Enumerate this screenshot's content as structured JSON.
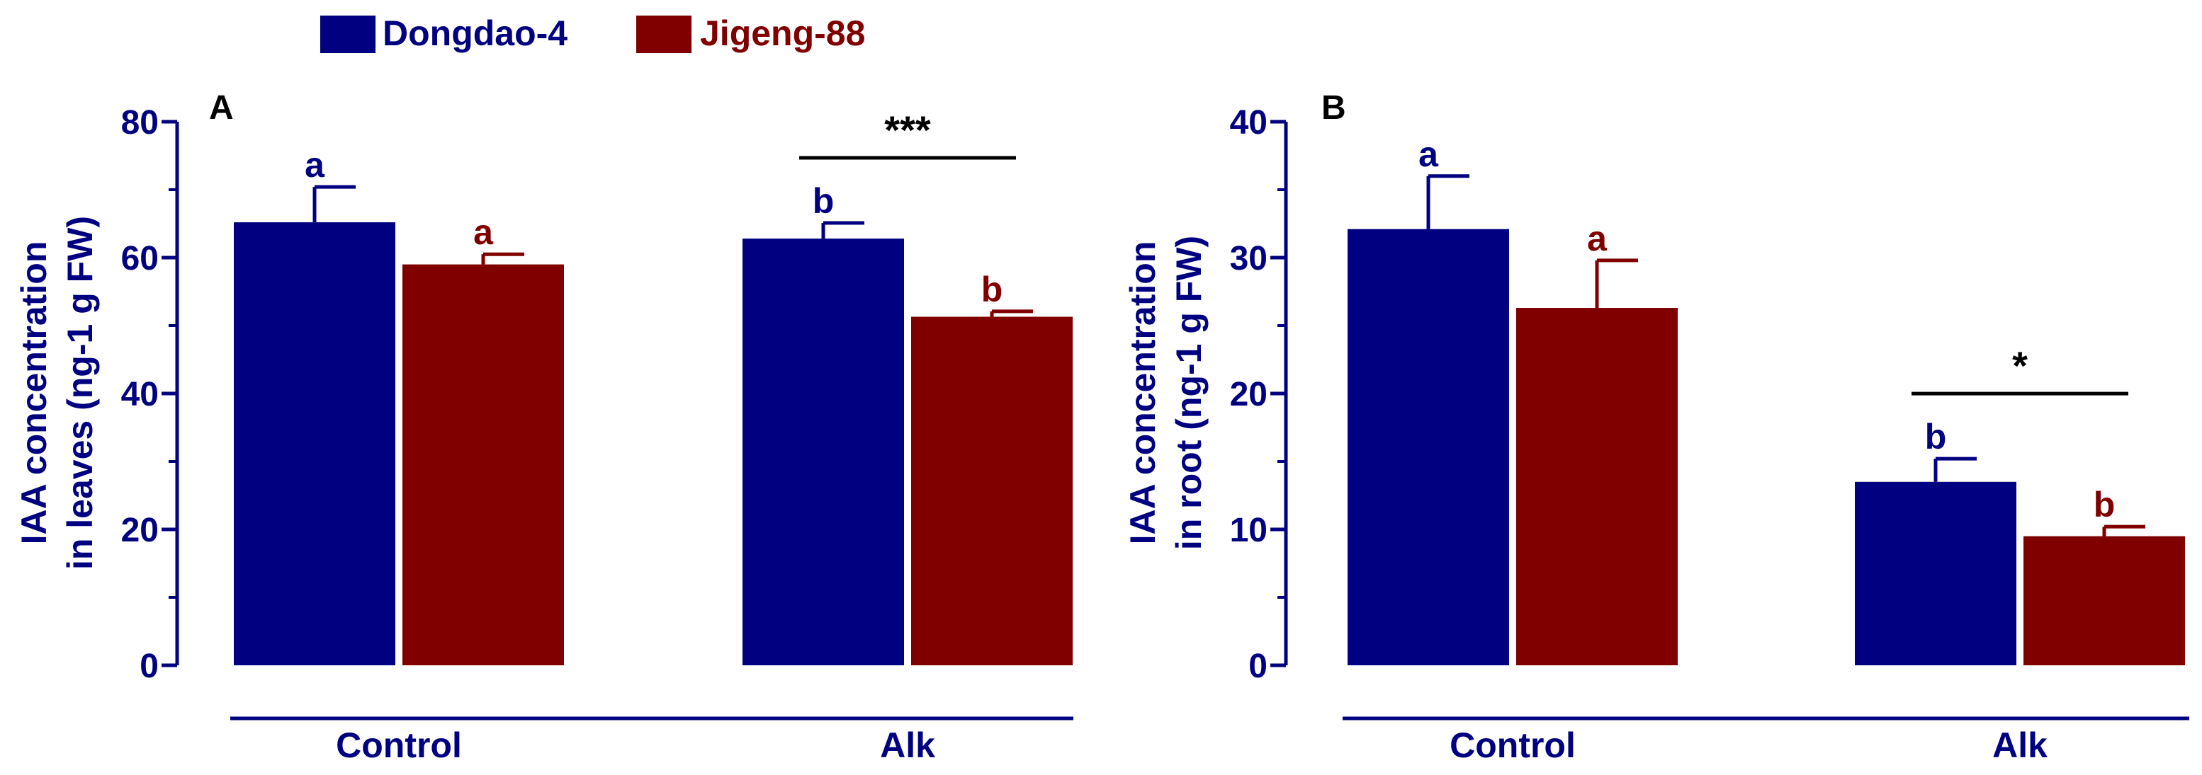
{
  "legend": [
    {
      "name": "Dongdao-4",
      "color": "#000080"
    },
    {
      "name": "Jigeng-88",
      "color": "#800000"
    }
  ],
  "colors": {
    "axis": "#000080",
    "text": "#000000",
    "series1": "#000080",
    "series2": "#800000"
  },
  "chart_data": [
    {
      "type": "bar",
      "panel_label": "A",
      "ylabel_line1": "IAA concentration",
      "ylabel_line2": "in leaves (ng-1 g FW)",
      "ylim": [
        0,
        80
      ],
      "yticks": [
        0,
        20,
        40,
        60,
        80
      ],
      "categories": [
        "Control",
        "Alk"
      ],
      "series": [
        {
          "name": "Dongdao-4",
          "values": [
            65.2,
            62.8
          ],
          "errors": [
            5.2,
            2.3
          ],
          "letters": [
            "a",
            "b"
          ]
        },
        {
          "name": "Jigeng-88",
          "values": [
            59.0,
            51.3
          ],
          "errors": [
            1.5,
            0.8
          ],
          "letters": [
            "a",
            "b"
          ]
        }
      ],
      "significance": [
        {
          "category": "Alk",
          "label": "***"
        }
      ]
    },
    {
      "type": "bar",
      "panel_label": "B",
      "ylabel_line1": "IAA concentration",
      "ylabel_line2": "in root (ng-1 g FW)",
      "ylim": [
        0,
        40
      ],
      "yticks": [
        0,
        10,
        20,
        30,
        40
      ],
      "categories": [
        "Control",
        "Alk"
      ],
      "series": [
        {
          "name": "Dongdao-4",
          "values": [
            32.1,
            13.5
          ],
          "errors": [
            3.9,
            1.7
          ],
          "letters": [
            "a",
            "b"
          ]
        },
        {
          "name": "Jigeng-88",
          "values": [
            26.3,
            9.5
          ],
          "errors": [
            3.5,
            0.7
          ],
          "letters": [
            "a",
            "b"
          ]
        }
      ],
      "significance": [
        {
          "category": "Alk",
          "label": "*"
        }
      ]
    }
  ]
}
